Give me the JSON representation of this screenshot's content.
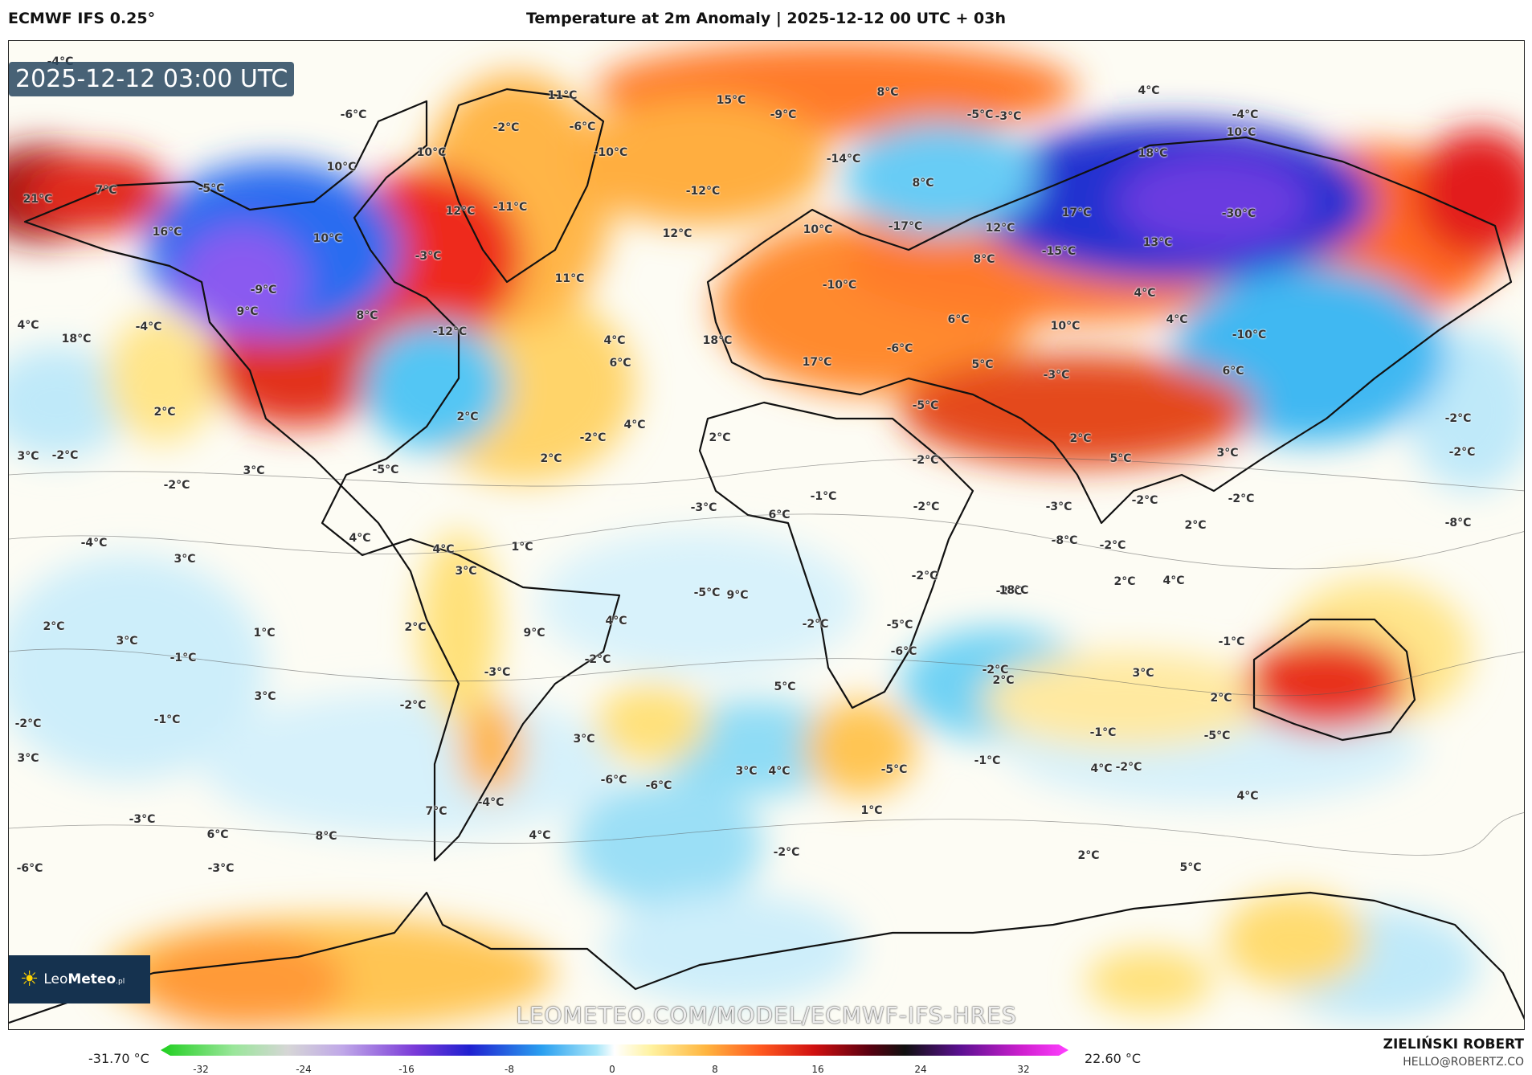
{
  "header": {
    "source": "ECMWF IFS 0.25°",
    "title": "Temperature at 2m Anomaly | 2025-12-12 00 UTC + 03h"
  },
  "map": {
    "timestamp": "2025-12-12 03:00 UTC",
    "watermark": "LEOMETEO.COM/MODEL/ECMWF-IFS-HRES",
    "logo": {
      "brand_light": "Leo",
      "brand_bold": "Meteo",
      "suffix": ".pl",
      "icon": "sun-icon"
    },
    "labels": [
      "-4°C",
      "11°C",
      "15°C",
      "8°C",
      "4°C",
      "-6°C",
      "-2°C",
      "-6°C",
      "-9°C",
      "-5°C",
      "-3°C",
      "-4°C",
      "10°C",
      "10°C",
      "10°C",
      "-10°C",
      "-14°C",
      "8°C",
      "18°C",
      "21°C",
      "7°C",
      "-5°C",
      "12°C",
      "-11°C",
      "-12°C",
      "17°C",
      "-30°C",
      "16°C",
      "10°C",
      "12°C",
      "10°C",
      "-17°C",
      "12°C",
      "13°C",
      "-3°C",
      "11°C",
      "8°C",
      "-15°C",
      "-9°C",
      "-10°C",
      "4°C",
      "4°C",
      "-4°C",
      "18°C",
      "9°C",
      "8°C",
      "-12°C",
      "6°C",
      "4°C",
      "-10°C",
      "4°C",
      "10°C",
      "18°C",
      "-6°C",
      "6°C",
      "17°C",
      "5°C",
      "-3°C",
      "6°C",
      "-5°C",
      "2°C",
      "2°C",
      "4°C",
      "2°C",
      "-2°C",
      "2°C",
      "3°C",
      "-2°C",
      "2°C",
      "-5°C",
      "5°C",
      "-2°C",
      "3°C",
      "-2°C",
      "3°C",
      "-1°C",
      "-2°C",
      "-2°C",
      "-2°C",
      "-2°C",
      "-4°C",
      "3°C",
      "-2°C",
      "-3°C",
      "6°C",
      "-3°C",
      "-2°C",
      "2°C",
      "4°C",
      "1°C",
      "4°C",
      "-8°C",
      "3°C",
      "-2°C",
      "-2°C",
      "-5°C",
      "9°C",
      "4°C",
      "2°C",
      "18°C",
      "-8°C",
      "2°C",
      "3°C",
      "-1°C",
      "1°C",
      "2°C",
      "9°C",
      "4°C",
      "-2°C",
      "-5°C",
      "-2°C",
      "-3°C",
      "-6°C",
      "-2°C",
      "2°C",
      "3°C",
      "-1°C",
      "5°C",
      "2°C",
      "3°C",
      "-2°C",
      "-1°C",
      "-2°C",
      "-1°C",
      "-5°C",
      "3°C",
      "-1°C",
      "3°C",
      "-2°C",
      "4°C",
      "-6°C",
      "-6°C",
      "3°C",
      "4°C",
      "-5°C",
      "-3°C",
      "-4°C",
      "7°C",
      "1°C",
      "4°C",
      "6°C",
      "8°C",
      "4°C",
      "-2°C",
      "2°C",
      "5°C",
      "-6°C",
      "-3°C"
    ]
  },
  "colorbar": {
    "min_label": "-31.70 °C",
    "max_label": "22.60 °C",
    "ticks": [
      "-32",
      "-24",
      "-16",
      "-8",
      "0",
      "8",
      "16",
      "24",
      "32"
    ]
  },
  "author": {
    "name": "ZIELIŃSKI ROBERT",
    "email": "HELLO@ROBERTZ.CO"
  }
}
